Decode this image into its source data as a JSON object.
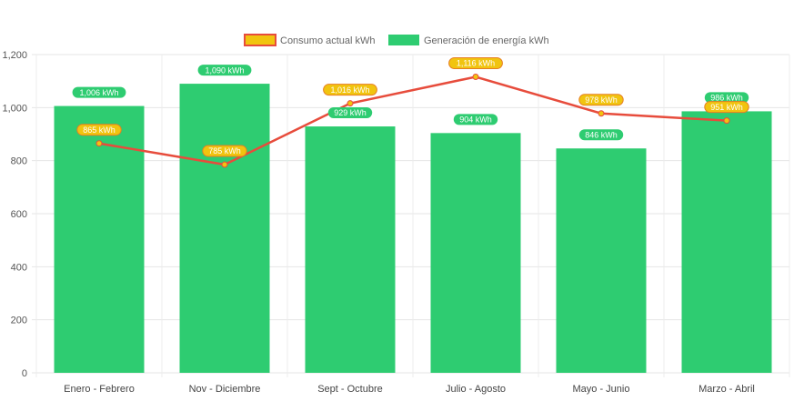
{
  "chart_data": {
    "type": "bar",
    "categories": [
      "Enero - Febrero",
      "Nov - Diciembre",
      "Sept - Octubre",
      "Julio - Agosto",
      "Mayo - Junio",
      "Marzo - Abril"
    ],
    "series": [
      {
        "name": "Consumo actual kWh",
        "type": "line",
        "values": [
          865,
          785,
          1016,
          1116,
          978,
          951
        ],
        "labels": [
          "865 kWh",
          "785 kWh",
          "1,016 kWh",
          "1,116 kWh",
          "978 kWh",
          "951 kWh"
        ],
        "color": "#e74c3c",
        "fill_color": "#f1c40f"
      },
      {
        "name": "Generación de energía kWh",
        "type": "bar",
        "values": [
          1006,
          1090,
          929,
          904,
          846,
          986
        ],
        "labels": [
          "1,006 kWh",
          "1,090 kWh",
          "929 kWh",
          "904 kWh",
          "846 kWh",
          "986 kWh"
        ],
        "color": "#2ecc71"
      }
    ],
    "yticks": [
      "0",
      "200",
      "400",
      "600",
      "800",
      "1,000",
      "1,200"
    ],
    "ylim": [
      0,
      1200
    ],
    "grid": true,
    "legend_position": "top-center"
  }
}
